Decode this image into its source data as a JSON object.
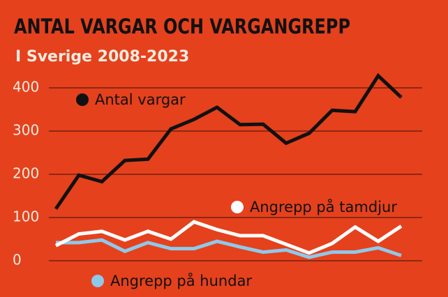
{
  "chart_data": {
    "type": "line",
    "title": "ANTAL VARGAR OCH VARGANGREPP",
    "subtitle": "I Sverige 2008-2023",
    "series": [
      {
        "name": "Antal vargar",
        "color": "#111111",
        "values": [
          120,
          198,
          183,
          232,
          235,
          305,
          327,
          355,
          315,
          316,
          272,
          295,
          348,
          345,
          428,
          378
        ]
      },
      {
        "name": "Angrepp på tamdjur",
        "color": "#ffffff",
        "values": [
          35,
          62,
          68,
          48,
          68,
          50,
          90,
          72,
          58,
          58,
          38,
          18,
          40,
          78,
          45,
          80
        ]
      },
      {
        "name": "Angrepp på hundar",
        "color": "#8ec9ea",
        "values": [
          42,
          42,
          48,
          22,
          42,
          28,
          28,
          45,
          32,
          20,
          25,
          8,
          20,
          20,
          30,
          12
        ]
      }
    ],
    "ylim": [
      0,
      400
    ],
    "yticks": [
      0,
      100,
      200,
      300,
      400
    ],
    "grid": true
  }
}
